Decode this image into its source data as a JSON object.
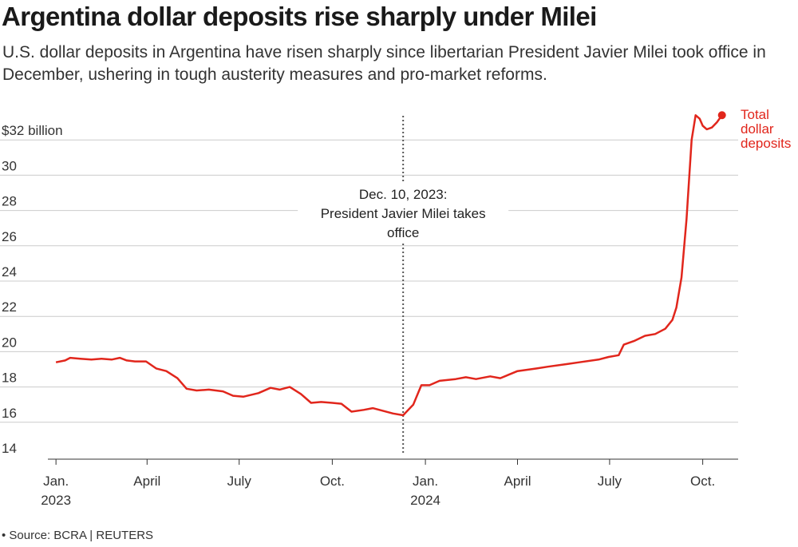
{
  "title": "Argentina dollar deposits rise sharply under Milei",
  "subtitle": "U.S. dollar deposits in Argentina have risen sharply since libertarian President Javier Milei took office in December, ushering in tough austerity measures and pro-market reforms.",
  "source": "• Source: BCRA | REUTERS",
  "colors": {
    "series": "#e1261c",
    "grid": "#cccccc",
    "annotation": "#555555"
  },
  "chart_data": {
    "type": "line",
    "y_unit_label": "$32 billion",
    "ylim": [
      14,
      34
    ],
    "y_ticks": [
      14,
      16,
      18,
      20,
      22,
      24,
      26,
      28,
      30,
      32
    ],
    "y_tick_labels": [
      "14",
      "16",
      "18",
      "20",
      "22",
      "24",
      "26",
      "28",
      "30",
      "$32 billion"
    ],
    "xlim": [
      "2022-12-24",
      "2024-11-05"
    ],
    "x_ticks": [
      {
        "date": "2023-01-01",
        "label": [
          "Jan.",
          "2023"
        ]
      },
      {
        "date": "2023-04-01",
        "label": [
          "April"
        ]
      },
      {
        "date": "2023-07-01",
        "label": [
          "July"
        ]
      },
      {
        "date": "2023-10-01",
        "label": [
          "Oct."
        ]
      },
      {
        "date": "2024-01-01",
        "label": [
          "Jan.",
          "2024"
        ]
      },
      {
        "date": "2024-04-01",
        "label": [
          "April"
        ]
      },
      {
        "date": "2024-07-01",
        "label": [
          "July"
        ]
      },
      {
        "date": "2024-10-01",
        "label": [
          "Oct."
        ]
      }
    ],
    "grid": true,
    "series": [
      {
        "name": "Total dollar deposits",
        "label_lines": [
          "Total",
          "dollar",
          "deposits"
        ],
        "points": [
          [
            "2023-01-01",
            19.4
          ],
          [
            "2023-01-10",
            19.5
          ],
          [
            "2023-01-15",
            19.65
          ],
          [
            "2023-01-25",
            19.6
          ],
          [
            "2023-02-05",
            19.55
          ],
          [
            "2023-02-15",
            19.6
          ],
          [
            "2023-02-25",
            19.55
          ],
          [
            "2023-03-05",
            19.65
          ],
          [
            "2023-03-12",
            19.5
          ],
          [
            "2023-03-20",
            19.45
          ],
          [
            "2023-03-31",
            19.45
          ],
          [
            "2023-04-10",
            19.05
          ],
          [
            "2023-04-20",
            18.9
          ],
          [
            "2023-05-01",
            18.5
          ],
          [
            "2023-05-10",
            17.9
          ],
          [
            "2023-05-20",
            17.8
          ],
          [
            "2023-06-01",
            17.85
          ],
          [
            "2023-06-15",
            17.75
          ],
          [
            "2023-06-25",
            17.5
          ],
          [
            "2023-07-05",
            17.45
          ],
          [
            "2023-07-20",
            17.65
          ],
          [
            "2023-08-01",
            17.95
          ],
          [
            "2023-08-10",
            17.85
          ],
          [
            "2023-08-20",
            18.0
          ],
          [
            "2023-08-31",
            17.6
          ],
          [
            "2023-09-10",
            17.1
          ],
          [
            "2023-09-20",
            17.15
          ],
          [
            "2023-10-01",
            17.1
          ],
          [
            "2023-10-10",
            17.05
          ],
          [
            "2023-10-20",
            16.6
          ],
          [
            "2023-11-01",
            16.7
          ],
          [
            "2023-11-10",
            16.8
          ],
          [
            "2023-11-20",
            16.65
          ],
          [
            "2023-11-30",
            16.5
          ],
          [
            "2023-12-10",
            16.4
          ],
          [
            "2023-12-20",
            17.0
          ],
          [
            "2023-12-28",
            18.1
          ],
          [
            "2024-01-05",
            18.1
          ],
          [
            "2024-01-15",
            18.35
          ],
          [
            "2024-01-31",
            18.45
          ],
          [
            "2024-02-10",
            18.55
          ],
          [
            "2024-02-20",
            18.45
          ],
          [
            "2024-03-05",
            18.6
          ],
          [
            "2024-03-15",
            18.5
          ],
          [
            "2024-04-01",
            18.9
          ],
          [
            "2024-04-20",
            19.05
          ],
          [
            "2024-05-01",
            19.15
          ],
          [
            "2024-05-20",
            19.3
          ],
          [
            "2024-06-01",
            19.4
          ],
          [
            "2024-06-20",
            19.55
          ],
          [
            "2024-06-30",
            19.7
          ],
          [
            "2024-07-10",
            19.8
          ],
          [
            "2024-07-15",
            20.4
          ],
          [
            "2024-07-25",
            20.6
          ],
          [
            "2024-08-05",
            20.9
          ],
          [
            "2024-08-15",
            21.0
          ],
          [
            "2024-08-25",
            21.3
          ],
          [
            "2024-09-01",
            21.8
          ],
          [
            "2024-09-05",
            22.5
          ],
          [
            "2024-09-10",
            24.2
          ],
          [
            "2024-09-15",
            27.5
          ],
          [
            "2024-09-20",
            32.0
          ],
          [
            "2024-09-24",
            33.4
          ],
          [
            "2024-09-28",
            33.2
          ],
          [
            "2024-10-01",
            32.8
          ],
          [
            "2024-10-05",
            32.6
          ],
          [
            "2024-10-10",
            32.7
          ],
          [
            "2024-10-15",
            33.0
          ],
          [
            "2024-10-20",
            33.4
          ]
        ]
      }
    ],
    "annotations": [
      {
        "date": "2023-12-10",
        "style": "dotted-vertical",
        "text_lines": [
          "Dec. 10, 2023:",
          "President Javier Milei takes",
          "office"
        ]
      }
    ]
  }
}
